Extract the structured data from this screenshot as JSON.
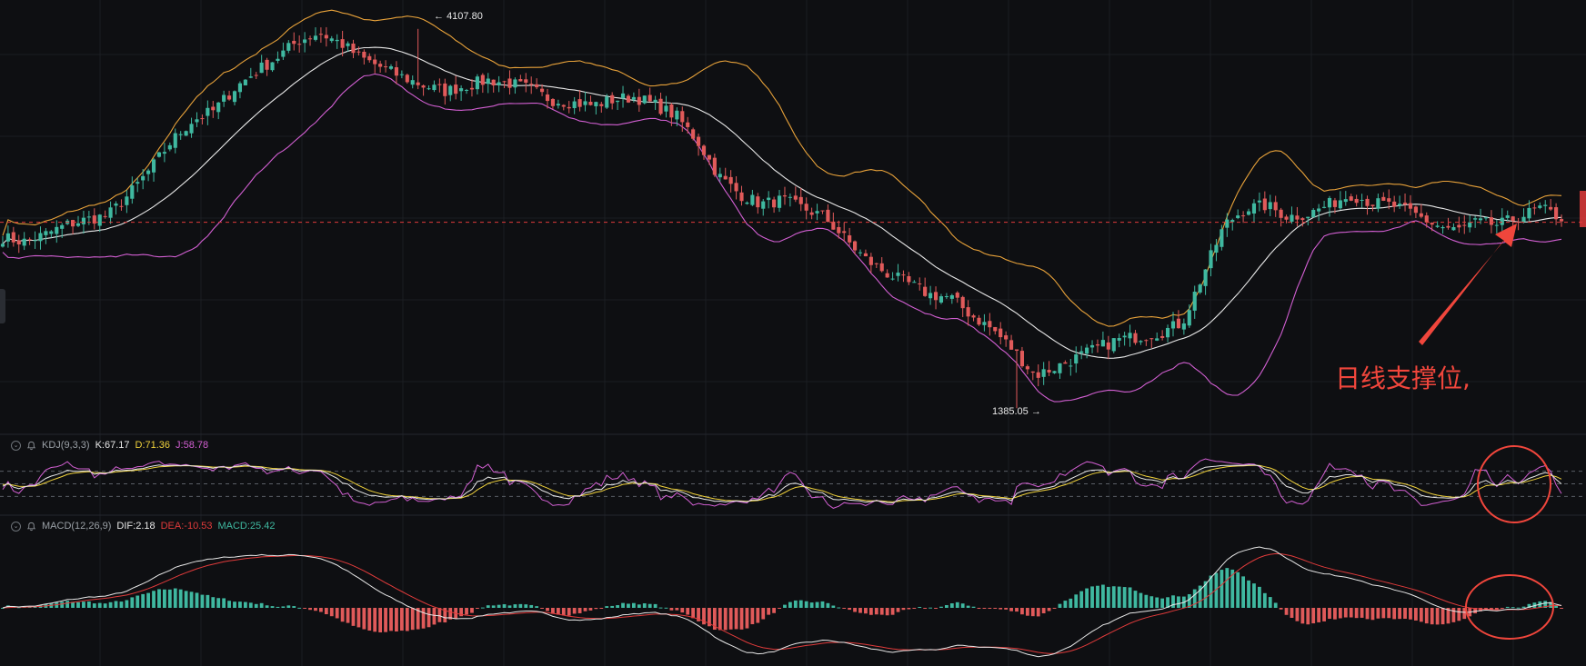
{
  "chart_data": [
    {
      "type": "candlestick",
      "panel": "main",
      "indicators": [
        "BOLL"
      ],
      "price_high_label": "4107.80",
      "price_low_label": "1385.05",
      "ylim": [
        1250,
        4250
      ],
      "current_price_line": 2720,
      "colors": {
        "up": "#3fb8a0",
        "down": "#e05a5a",
        "boll_upper": "#e8a23a",
        "boll_mid": "#e8e8e8",
        "boll_lower": "#d25fd2",
        "current_line": "#e03b3b"
      },
      "close_series": [
        2610,
        2580,
        2630,
        2700,
        2740,
        2770,
        2920,
        3100,
        3300,
        3450,
        3520,
        3680,
        3800,
        3900,
        4020,
        4080,
        4010,
        3900,
        3830,
        3760,
        3700,
        3660,
        3700,
        3740,
        3720,
        3680,
        3600,
        3580,
        3560,
        3600,
        3620,
        3560,
        3480,
        3300,
        3050,
        2920,
        2850,
        2880,
        2820,
        2760,
        2600,
        2450,
        2350,
        2280,
        2200,
        2180,
        2050,
        1950,
        1800,
        1620,
        1680,
        1750,
        1820,
        1880,
        1900,
        1930,
        2000,
        2350,
        2700,
        2820,
        2840,
        2760,
        2780,
        2850,
        2920,
        2860,
        2840,
        2780,
        2700,
        2660,
        2720,
        2700,
        2760,
        2820,
        2750
      ],
      "annotation": "日线支撑位,"
    },
    {
      "type": "line",
      "panel": "kdj",
      "name": "KDJ(9,3,3)",
      "legend": {
        "k": "K:67.17",
        "d": "D:71.36",
        "j": "J:58.78"
      },
      "ylim": [
        -20,
        120
      ],
      "guide_levels": [
        80,
        50,
        20
      ],
      "colors": {
        "k": "#e8e8e8",
        "d": "#f0d23c",
        "j": "#d25fd2"
      }
    },
    {
      "type": "bar",
      "panel": "macd",
      "name": "MACD(12,26,9)",
      "legend": {
        "dif": "DIF:2.18",
        "dea": "DEA:-10.53",
        "macd": "MACD:25.42"
      },
      "colors": {
        "dif": "#e8e8e8",
        "dea": "#e03b3b",
        "hist_pos": "#3fb8a0",
        "hist_neg": "#e05a5a"
      }
    }
  ]
}
